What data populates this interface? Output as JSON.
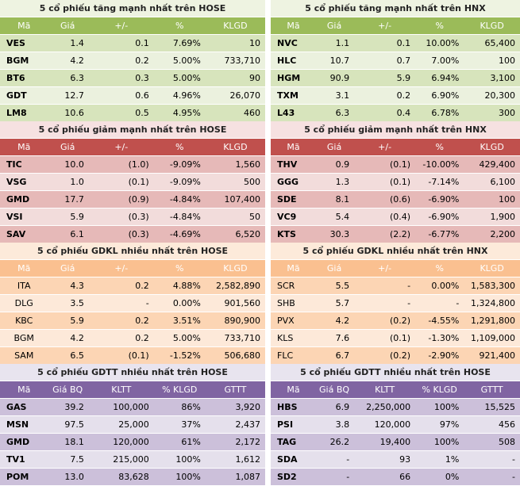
{
  "panels": [
    {
      "title": "5 cổ phiếu tăng mạnh nhất trên HOSE",
      "headers": [
        "Mã",
        "Giá",
        "+/-",
        "%",
        "KLGD"
      ],
      "rows": [
        [
          "VES",
          "1.4",
          "0.1",
          "7.69%",
          "10"
        ],
        [
          "BGM",
          "4.2",
          "0.2",
          "5.00%",
          "733,710"
        ],
        [
          "BT6",
          "6.3",
          "0.3",
          "5.00%",
          "90"
        ],
        [
          "GDT",
          "12.7",
          "0.6",
          "4.96%",
          "26,070"
        ],
        [
          "LM8",
          "10.6",
          "0.5",
          "4.95%",
          "460"
        ]
      ]
    },
    {
      "title": "5 cổ phiếu tăng mạnh nhất trên HNX",
      "headers": [
        "Mã",
        "Giá",
        "+/-",
        "%",
        "KLGD"
      ],
      "rows": [
        [
          "NVC",
          "1.1",
          "0.1",
          "10.00%",
          "65,400"
        ],
        [
          "HLC",
          "10.7",
          "0.7",
          "7.00%",
          "100"
        ],
        [
          "HGM",
          "90.9",
          "5.9",
          "6.94%",
          "3,100"
        ],
        [
          "TXM",
          "3.1",
          "0.2",
          "6.90%",
          "20,300"
        ],
        [
          "L43",
          "6.3",
          "0.4",
          "6.78%",
          "300"
        ]
      ]
    },
    {
      "title": "5 cổ phiếu giảm mạnh nhất trên HOSE",
      "headers": [
        "Mã",
        "Giá",
        "+/-",
        "%",
        "KLGD"
      ],
      "rows": [
        [
          "TIC",
          "10.0",
          "(1.0)",
          "-9.09%",
          "1,560"
        ],
        [
          "VSG",
          "1.0",
          "(0.1)",
          "-9.09%",
          "500"
        ],
        [
          "GMD",
          "17.7",
          "(0.9)",
          "-4.84%",
          "107,400"
        ],
        [
          "VSI",
          "5.9",
          "(0.3)",
          "-4.84%",
          "50"
        ],
        [
          "SAV",
          "6.1",
          "(0.3)",
          "-4.69%",
          "6,520"
        ]
      ]
    },
    {
      "title": "5 cổ phiếu giảm mạnh nhất trên HNX",
      "headers": [
        "Mã",
        "Giá",
        "+/-",
        "%",
        "KLGD"
      ],
      "rows": [
        [
          "THV",
          "0.9",
          "(0.1)",
          "-10.00%",
          "429,400"
        ],
        [
          "GGG",
          "1.3",
          "(0.1)",
          "-7.14%",
          "6,100"
        ],
        [
          "SDE",
          "8.1",
          "(0.6)",
          "-6.90%",
          "100"
        ],
        [
          "VC9",
          "5.4",
          "(0.4)",
          "-6.90%",
          "1,900"
        ],
        [
          "KTS",
          "30.3",
          "(2.2)",
          "-6.77%",
          "2,200"
        ]
      ]
    },
    {
      "title": "5 cổ phiếu GDKL nhiều nhất trên HOSE",
      "headers": [
        "Mã",
        "Giá",
        "+/-",
        "%",
        "KLGD"
      ],
      "rows": [
        [
          "ITA",
          "4.3",
          "0.2",
          "4.88%",
          "2,582,890"
        ],
        [
          "DLG",
          "3.5",
          "-",
          "0.00%",
          "901,560"
        ],
        [
          "KBC",
          "5.9",
          "0.2",
          "3.51%",
          "890,900"
        ],
        [
          "BGM",
          "4.2",
          "0.2",
          "5.00%",
          "733,710"
        ],
        [
          "SAM",
          "6.5",
          "(0.1)",
          "-1.52%",
          "506,680"
        ]
      ]
    },
    {
      "title": "5 cổ phiếu GDKL nhiều nhất trên HNX",
      "headers": [
        "Mã",
        "Giá",
        "+/-",
        "%",
        "KLGD"
      ],
      "rows": [
        [
          "SCR",
          "5.5",
          "-",
          "0.00%",
          "1,583,300"
        ],
        [
          "SHB",
          "5.7",
          "-",
          "-",
          "1,324,800"
        ],
        [
          "PVX",
          "4.2",
          "(0.2)",
          "-4.55%",
          "1,291,800"
        ],
        [
          "KLS",
          "7.6",
          "(0.1)",
          "-1.30%",
          "1,109,000"
        ],
        [
          "FLC",
          "6.7",
          "(0.2)",
          "-2.90%",
          "921,400"
        ]
      ]
    },
    {
      "title": "5 cổ phiếu GDTT nhiều nhất trên HOSE",
      "headers": [
        "Mã",
        "Giá BQ",
        "KLTT",
        "% KLGD",
        "GTTT"
      ],
      "rows": [
        [
          "GAS",
          "39.2",
          "100,000",
          "86%",
          "3,920"
        ],
        [
          "MSN",
          "97.5",
          "25,000",
          "37%",
          "2,437"
        ],
        [
          "GMD",
          "18.1",
          "120,000",
          "61%",
          "2,172"
        ],
        [
          "TV1",
          "7.5",
          "215,000",
          "100%",
          "1,612"
        ],
        [
          "POM",
          "13.0",
          "83,628",
          "100%",
          "1,087"
        ]
      ]
    },
    {
      "title": "5 cổ phiếu GDTT nhiều nhất trên HOSE",
      "headers": [
        "Mã",
        "Giá BQ",
        "KLTT",
        "% KLGD",
        "GTTT"
      ],
      "rows": [
        [
          "HBS",
          "6.9",
          "2,250,000",
          "100%",
          "15,525"
        ],
        [
          "PSI",
          "3.8",
          "120,000",
          "97%",
          "456"
        ],
        [
          "TAG",
          "26.2",
          "19,400",
          "100%",
          "508"
        ],
        [
          "SDA",
          "-",
          "93",
          "1%",
          "-"
        ],
        [
          "SD2",
          "-",
          "66",
          "0%",
          "-"
        ]
      ]
    }
  ]
}
